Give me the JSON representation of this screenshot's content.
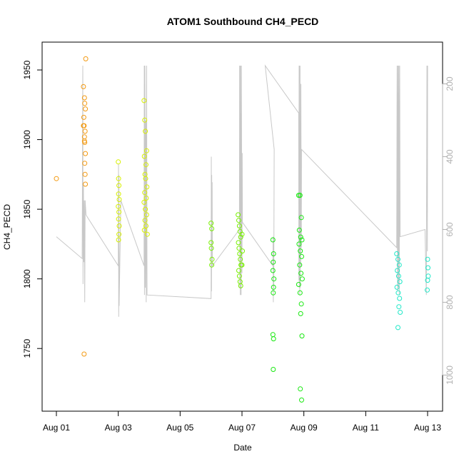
{
  "chart_data": {
    "type": "scatter",
    "title": "ATOM1 Southbound CH4_PECD",
    "xlabel": "Date",
    "ylabel": "CH4_PECD",
    "xlim": [
      "2016-08-01",
      "2016-08-13"
    ],
    "ylim": [
      1705,
      1970
    ],
    "x_ticks": [
      "Aug 01",
      "Aug 03",
      "Aug 05",
      "Aug 07",
      "Aug 09",
      "Aug 11",
      "Aug 13"
    ],
    "y_ticks": [
      1750,
      1800,
      1850,
      1900,
      1950
    ],
    "y2_ticks": [
      200,
      400,
      600,
      800,
      1000
    ],
    "y2lim": [
      150,
      1060
    ],
    "grid": false,
    "legend": "none",
    "colors": {
      "axis": "#000000",
      "secondary_axis": "#b0b0b0",
      "line": "#c8c8c8"
    },
    "series": [
      {
        "color": "#f39a12",
        "points": [
          [
            "2016-08-01T00:00",
            1872
          ],
          [
            "2016-08-01T21:30",
            1746
          ],
          [
            "2016-08-01T21:00",
            1938
          ],
          [
            "2016-08-01T21:45",
            1930
          ],
          [
            "2016-08-01T22:00",
            1926
          ],
          [
            "2016-08-01T22:30",
            1922
          ],
          [
            "2016-08-01T21:15",
            1916
          ],
          [
            "2016-08-01T21:00",
            1910
          ],
          [
            "2016-08-01T21:30",
            1910
          ],
          [
            "2016-08-01T22:15",
            1906
          ],
          [
            "2016-08-01T21:45",
            1902
          ],
          [
            "2016-08-01T22:00",
            1898
          ],
          [
            "2016-08-01T22:30",
            1890
          ],
          [
            "2016-08-01T22:00",
            1883
          ],
          [
            "2016-08-01T22:15",
            1875
          ],
          [
            "2016-08-01T22:30",
            1868
          ],
          [
            "2016-08-01T22:45",
            1958
          ],
          [
            "2016-08-01T21:45",
            1899
          ]
        ]
      },
      {
        "color": "#d7f000",
        "points": [
          [
            "2016-08-03T00:00",
            1884
          ],
          [
            "2016-08-03T00:15",
            1872
          ],
          [
            "2016-08-03T00:30",
            1867
          ],
          [
            "2016-08-03T00:15",
            1861
          ],
          [
            "2016-08-03T00:45",
            1857
          ],
          [
            "2016-08-03T00:00",
            1852
          ],
          [
            "2016-08-03T00:30",
            1848
          ],
          [
            "2016-08-03T00:15",
            1843
          ],
          [
            "2016-08-03T00:45",
            1838
          ],
          [
            "2016-08-03T00:30",
            1832
          ],
          [
            "2016-08-03T00:15",
            1828
          ],
          [
            "2016-08-03T20:00",
            1928
          ],
          [
            "2016-08-03T20:30",
            1914
          ],
          [
            "2016-08-03T21:00",
            1906
          ],
          [
            "2016-08-03T22:00",
            1892
          ],
          [
            "2016-08-03T20:15",
            1888
          ],
          [
            "2016-08-03T21:30",
            1882
          ],
          [
            "2016-08-03T20:45",
            1875
          ],
          [
            "2016-08-03T21:15",
            1872
          ],
          [
            "2016-08-03T22:15",
            1866
          ],
          [
            "2016-08-03T20:30",
            1862
          ],
          [
            "2016-08-03T21:45",
            1858
          ],
          [
            "2016-08-03T20:00",
            1855
          ],
          [
            "2016-08-03T21:00",
            1850
          ],
          [
            "2016-08-03T22:00",
            1846
          ],
          [
            "2016-08-03T20:45",
            1842
          ],
          [
            "2016-08-03T21:30",
            1838
          ],
          [
            "2016-08-03T20:15",
            1835
          ],
          [
            "2016-08-03T22:30",
            1832
          ]
        ]
      },
      {
        "color": "#78f000",
        "points": [
          [
            "2016-08-06T00:00",
            1840
          ],
          [
            "2016-08-06T00:30",
            1836
          ],
          [
            "2016-08-06T00:00",
            1826
          ],
          [
            "2016-08-06T00:15",
            1822
          ],
          [
            "2016-08-06T00:45",
            1814
          ],
          [
            "2016-08-06T00:30",
            1810
          ],
          [
            "2016-08-06T21:00",
            1846
          ],
          [
            "2016-08-06T21:30",
            1842
          ],
          [
            "2016-08-06T22:00",
            1838
          ],
          [
            "2016-08-06T22:30",
            1834
          ],
          [
            "2016-08-06T23:00",
            1830
          ],
          [
            "2016-08-06T21:15",
            1826
          ],
          [
            "2016-08-06T21:45",
            1822
          ],
          [
            "2016-08-06T22:15",
            1818
          ],
          [
            "2016-08-06T22:45",
            1814
          ],
          [
            "2016-08-06T23:15",
            1810
          ],
          [
            "2016-08-06T21:30",
            1806
          ],
          [
            "2016-08-06T22:00",
            1802
          ],
          [
            "2016-08-06T22:30",
            1798
          ],
          [
            "2016-08-06T23:00",
            1795
          ],
          [
            "2016-08-07T00:00",
            1832
          ],
          [
            "2016-08-07T00:15",
            1820
          ],
          [
            "2016-08-07T00:00",
            1810
          ]
        ]
      },
      {
        "color": "#18e810",
        "points": [
          [
            "2016-08-08T00:00",
            1828
          ],
          [
            "2016-08-08T00:30",
            1818
          ],
          [
            "2016-08-08T00:15",
            1812
          ],
          [
            "2016-08-08T00:00",
            1806
          ],
          [
            "2016-08-08T00:45",
            1800
          ],
          [
            "2016-08-08T00:30",
            1794
          ],
          [
            "2016-08-08T00:15",
            1790
          ],
          [
            "2016-08-08T00:00",
            1760
          ],
          [
            "2016-08-08T00:30",
            1757
          ],
          [
            "2016-08-08T00:15",
            1735
          ],
          [
            "2016-08-08T20:00",
            1860
          ],
          [
            "2016-08-08T21:00",
            1860
          ],
          [
            "2016-08-08T22:00",
            1844
          ],
          [
            "2016-08-08T20:30",
            1835
          ],
          [
            "2016-08-08T21:30",
            1830
          ],
          [
            "2016-08-08T22:30",
            1828
          ],
          [
            "2016-08-08T20:15",
            1825
          ],
          [
            "2016-08-08T21:15",
            1820
          ],
          [
            "2016-08-08T22:15",
            1816
          ],
          [
            "2016-08-08T20:45",
            1810
          ],
          [
            "2016-08-08T21:45",
            1804
          ],
          [
            "2016-08-08T22:45",
            1800
          ],
          [
            "2016-08-08T20:00",
            1796
          ],
          [
            "2016-08-08T21:00",
            1790
          ],
          [
            "2016-08-08T22:00",
            1782
          ],
          [
            "2016-08-08T21:30",
            1775
          ],
          [
            "2016-08-08T22:30",
            1759
          ],
          [
            "2016-08-08T21:15",
            1721
          ],
          [
            "2016-08-08T22:15",
            1713
          ]
        ]
      },
      {
        "color": "#20e8c8",
        "points": [
          [
            "2016-08-12T00:00",
            1818
          ],
          [
            "2016-08-12T01:00",
            1814
          ],
          [
            "2016-08-12T02:00",
            1810
          ],
          [
            "2016-08-12T00:30",
            1806
          ],
          [
            "2016-08-12T01:30",
            1802
          ],
          [
            "2016-08-12T02:30",
            1798
          ],
          [
            "2016-08-12T00:15",
            1794
          ],
          [
            "2016-08-12T01:15",
            1790
          ],
          [
            "2016-08-12T02:15",
            1786
          ],
          [
            "2016-08-12T01:45",
            1780
          ],
          [
            "2016-08-12T02:45",
            1776
          ],
          [
            "2016-08-12T01:00",
            1765
          ],
          [
            "2016-08-13T00:00",
            1814
          ],
          [
            "2016-08-13T00:15",
            1808
          ],
          [
            "2016-08-13T00:30",
            1802
          ],
          [
            "2016-08-13T00:00",
            1799
          ],
          [
            "2016-08-12T23:45",
            1792
          ]
        ]
      }
    ],
    "line_series_right_axis": [
      [
        "2016-08-01T00:00",
        620
      ],
      [
        "2016-08-01T20:00",
        680
      ],
      [
        "2016-08-01T20:30",
        150
      ],
      [
        "2016-08-01T20:40",
        750
      ],
      [
        "2016-08-01T21:00",
        480
      ],
      [
        "2016-08-01T21:20",
        690
      ],
      [
        "2016-08-01T21:40",
        520
      ],
      [
        "2016-08-01T22:00",
        800
      ],
      [
        "2016-08-01T22:20",
        520
      ],
      [
        "2016-08-01T23:00",
        560
      ],
      [
        "2016-08-03T00:00",
        700
      ],
      [
        "2016-08-03T00:10",
        420
      ],
      [
        "2016-08-03T00:20",
        840
      ],
      [
        "2016-08-03T00:30",
        450
      ],
      [
        "2016-08-03T00:40",
        810
      ],
      [
        "2016-08-03T02:00",
        520
      ],
      [
        "2016-08-03T20:00",
        700
      ],
      [
        "2016-08-03T20:10",
        150
      ],
      [
        "2016-08-03T20:20",
        780
      ],
      [
        "2016-08-03T20:40",
        150
      ],
      [
        "2016-08-03T21:00",
        760
      ],
      [
        "2016-08-03T21:20",
        300
      ],
      [
        "2016-08-03T21:40",
        800
      ],
      [
        "2016-08-03T22:00",
        150
      ],
      [
        "2016-08-03T22:20",
        780
      ],
      [
        "2016-08-06T00:00",
        790
      ],
      [
        "2016-08-06T00:10",
        400
      ],
      [
        "2016-08-06T00:20",
        770
      ],
      [
        "2016-08-06T00:30",
        450
      ],
      [
        "2016-08-06T00:40",
        620
      ],
      [
        "2016-08-06T00:50",
        470
      ],
      [
        "2016-08-06T01:00",
        700
      ],
      [
        "2016-08-06T22:00",
        600
      ],
      [
        "2016-08-06T22:10",
        150
      ],
      [
        "2016-08-06T22:20",
        760
      ],
      [
        "2016-08-06T22:30",
        150
      ],
      [
        "2016-08-06T22:40",
        780
      ],
      [
        "2016-08-06T22:50",
        150
      ],
      [
        "2016-08-06T23:00",
        760
      ],
      [
        "2016-08-06T23:10",
        280
      ],
      [
        "2016-08-06T23:20",
        780
      ],
      [
        "2016-08-06T23:30",
        150
      ],
      [
        "2016-08-07T00:00",
        720
      ],
      [
        "2016-08-07T00:10",
        390
      ],
      [
        "2016-08-07T00:20",
        580
      ],
      [
        "2016-08-08T00:00",
        700
      ],
      [
        "2016-08-08T00:10",
        620
      ],
      [
        "2016-08-08T00:20",
        800
      ],
      [
        "2016-08-08T00:30",
        660
      ],
      [
        "2016-08-08T00:40",
        760
      ],
      [
        "2016-08-08T01:00",
        380
      ],
      [
        "2016-08-07T18:00",
        150
      ],
      [
        "2016-08-08T20:00",
        280
      ],
      [
        "2016-08-08T20:10",
        740
      ],
      [
        "2016-08-08T20:20",
        150
      ],
      [
        "2016-08-08T20:30",
        760
      ],
      [
        "2016-08-08T20:40",
        150
      ],
      [
        "2016-08-08T20:50",
        780
      ],
      [
        "2016-08-08T21:00",
        150
      ],
      [
        "2016-08-08T21:10",
        760
      ],
      [
        "2016-08-08T21:20",
        300
      ],
      [
        "2016-08-08T21:30",
        700
      ],
      [
        "2016-08-08T21:40",
        200
      ],
      [
        "2016-08-08T22:00",
        650
      ],
      [
        "2016-08-08T22:10",
        380
      ],
      [
        "2016-08-12T00:00",
        650
      ],
      [
        "2016-08-12T00:20",
        150
      ],
      [
        "2016-08-12T00:40",
        770
      ],
      [
        "2016-08-12T01:00",
        150
      ],
      [
        "2016-08-12T01:20",
        760
      ],
      [
        "2016-08-12T01:40",
        150
      ],
      [
        "2016-08-12T02:00",
        780
      ],
      [
        "2016-08-12T02:20",
        150
      ],
      [
        "2016-08-12T02:40",
        620
      ],
      [
        "2016-08-12T22:00",
        600
      ],
      [
        "2016-08-12T23:00",
        780
      ],
      [
        "2016-08-12T23:30",
        150
      ],
      [
        "2016-08-12T23:50",
        660
      ],
      [
        "2016-08-13T00:00",
        150
      ]
    ]
  }
}
